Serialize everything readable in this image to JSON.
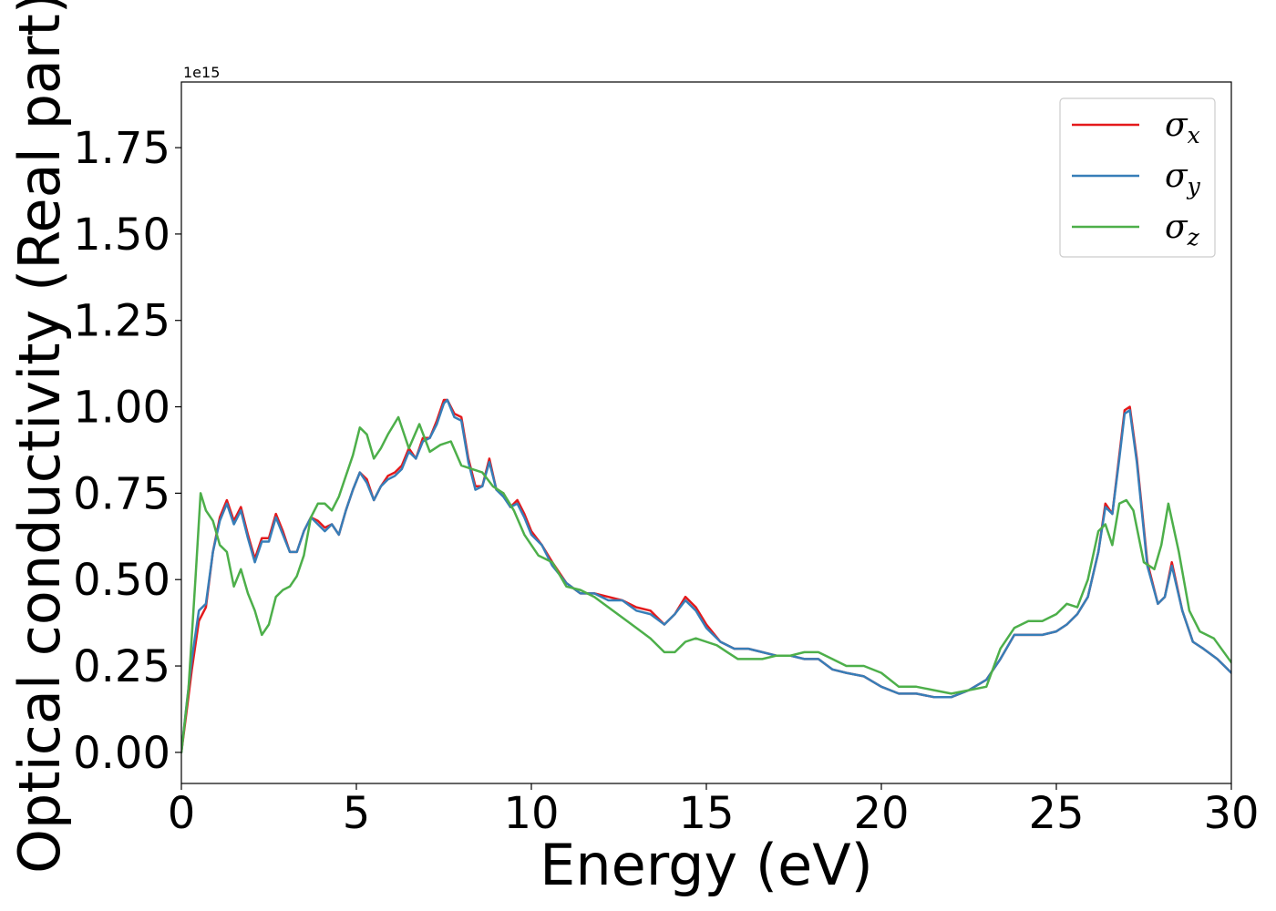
{
  "chart_data": {
    "type": "line",
    "title": "",
    "xlabel": "Energy (eV)",
    "ylabel": "Optical conductivity (Real part)",
    "y_offset_label": "1e15",
    "xlim": [
      0,
      30
    ],
    "ylim": [
      -0.09,
      1.94
    ],
    "xticks": [
      0,
      5,
      10,
      15,
      20,
      25,
      30
    ],
    "xtick_labels": [
      "0",
      "5",
      "10",
      "15",
      "20",
      "25",
      "30"
    ],
    "yticks": [
      0.0,
      0.25,
      0.5,
      0.75,
      1.0,
      1.25,
      1.5,
      1.75
    ],
    "ytick_labels": [
      "0.00",
      "0.25",
      "0.50",
      "0.75",
      "1.00",
      "1.25",
      "1.50",
      "1.75"
    ],
    "grid": false,
    "legend_position": "top-right",
    "series": [
      {
        "name": "σx",
        "legend_base": "σ",
        "legend_sub": "x",
        "color": "#e41a1c",
        "x": [
          0,
          0.15,
          0.3,
          0.5,
          0.7,
          0.9,
          1.1,
          1.3,
          1.5,
          1.7,
          1.9,
          2.1,
          2.3,
          2.5,
          2.7,
          2.9,
          3.1,
          3.3,
          3.5,
          3.7,
          3.9,
          4.1,
          4.3,
          4.5,
          4.7,
          4.9,
          5.1,
          5.3,
          5.5,
          5.7,
          5.9,
          6.1,
          6.3,
          6.5,
          6.7,
          6.9,
          7.1,
          7.3,
          7.5,
          7.6,
          7.8,
          8.0,
          8.2,
          8.4,
          8.6,
          8.8,
          9.0,
          9.2,
          9.4,
          9.6,
          9.8,
          10.0,
          10.3,
          10.6,
          11.0,
          11.4,
          11.8,
          12.2,
          12.6,
          13.0,
          13.4,
          13.8,
          14.1,
          14.4,
          14.7,
          15.0,
          15.4,
          15.8,
          16.2,
          16.6,
          17.0,
          17.4,
          17.8,
          18.2,
          18.6,
          19.0,
          19.5,
          20.0,
          20.5,
          21.0,
          21.5,
          22.0,
          22.5,
          23.0,
          23.4,
          23.8,
          24.2,
          24.6,
          25.0,
          25.3,
          25.6,
          25.9,
          26.2,
          26.4,
          26.6,
          26.8,
          26.95,
          27.1,
          27.3,
          27.6,
          27.9,
          28.1,
          28.3,
          28.6,
          28.9,
          29.2,
          29.6,
          30.0
        ],
        "y": [
          0.0,
          0.12,
          0.24,
          0.38,
          0.42,
          0.58,
          0.68,
          0.73,
          0.67,
          0.71,
          0.63,
          0.56,
          0.62,
          0.62,
          0.69,
          0.64,
          0.58,
          0.58,
          0.64,
          0.68,
          0.67,
          0.65,
          0.66,
          0.63,
          0.7,
          0.76,
          0.81,
          0.79,
          0.73,
          0.77,
          0.8,
          0.81,
          0.83,
          0.88,
          0.85,
          0.91,
          0.91,
          0.96,
          1.02,
          1.02,
          0.98,
          0.97,
          0.85,
          0.77,
          0.77,
          0.85,
          0.76,
          0.75,
          0.71,
          0.73,
          0.69,
          0.64,
          0.6,
          0.55,
          0.49,
          0.46,
          0.46,
          0.45,
          0.44,
          0.42,
          0.41,
          0.37,
          0.4,
          0.45,
          0.42,
          0.37,
          0.32,
          0.3,
          0.3,
          0.29,
          0.28,
          0.28,
          0.27,
          0.27,
          0.24,
          0.23,
          0.22,
          0.19,
          0.17,
          0.17,
          0.16,
          0.16,
          0.18,
          0.21,
          0.27,
          0.34,
          0.34,
          0.34,
          0.35,
          0.37,
          0.4,
          0.45,
          0.58,
          0.72,
          0.69,
          0.86,
          0.99,
          1.0,
          0.85,
          0.55,
          0.43,
          0.45,
          0.55,
          0.41,
          0.32,
          0.3,
          0.27,
          0.23
        ]
      },
      {
        "name": "σy",
        "legend_base": "σ",
        "legend_sub": "y",
        "color": "#377eb8",
        "x": [
          0,
          0.15,
          0.3,
          0.5,
          0.7,
          0.9,
          1.1,
          1.3,
          1.5,
          1.7,
          1.9,
          2.1,
          2.3,
          2.5,
          2.7,
          2.9,
          3.1,
          3.3,
          3.5,
          3.7,
          3.9,
          4.1,
          4.3,
          4.5,
          4.7,
          4.9,
          5.1,
          5.3,
          5.5,
          5.7,
          5.9,
          6.1,
          6.3,
          6.5,
          6.7,
          6.9,
          7.1,
          7.3,
          7.5,
          7.6,
          7.8,
          8.0,
          8.2,
          8.4,
          8.6,
          8.8,
          9.0,
          9.2,
          9.4,
          9.6,
          9.8,
          10.0,
          10.3,
          10.6,
          11.0,
          11.4,
          11.8,
          12.2,
          12.6,
          13.0,
          13.4,
          13.8,
          14.1,
          14.4,
          14.7,
          15.0,
          15.4,
          15.8,
          16.2,
          16.6,
          17.0,
          17.4,
          17.8,
          18.2,
          18.6,
          19.0,
          19.5,
          20.0,
          20.5,
          21.0,
          21.5,
          22.0,
          22.5,
          23.0,
          23.4,
          23.8,
          24.2,
          24.6,
          25.0,
          25.3,
          25.6,
          25.9,
          26.2,
          26.4,
          26.6,
          26.8,
          26.95,
          27.1,
          27.3,
          27.6,
          27.9,
          28.1,
          28.3,
          28.6,
          28.9,
          29.2,
          29.6,
          30.0
        ],
        "y": [
          0.0,
          0.14,
          0.27,
          0.41,
          0.43,
          0.58,
          0.67,
          0.72,
          0.66,
          0.7,
          0.62,
          0.55,
          0.61,
          0.61,
          0.68,
          0.63,
          0.58,
          0.58,
          0.64,
          0.68,
          0.66,
          0.64,
          0.66,
          0.63,
          0.7,
          0.76,
          0.81,
          0.78,
          0.73,
          0.77,
          0.79,
          0.8,
          0.82,
          0.87,
          0.85,
          0.9,
          0.91,
          0.95,
          1.01,
          1.02,
          0.97,
          0.96,
          0.84,
          0.76,
          0.77,
          0.84,
          0.76,
          0.74,
          0.71,
          0.72,
          0.68,
          0.63,
          0.6,
          0.54,
          0.49,
          0.46,
          0.46,
          0.44,
          0.44,
          0.41,
          0.4,
          0.37,
          0.4,
          0.44,
          0.41,
          0.36,
          0.32,
          0.3,
          0.3,
          0.29,
          0.28,
          0.28,
          0.27,
          0.27,
          0.24,
          0.23,
          0.22,
          0.19,
          0.17,
          0.17,
          0.16,
          0.16,
          0.18,
          0.21,
          0.27,
          0.34,
          0.34,
          0.34,
          0.35,
          0.37,
          0.4,
          0.45,
          0.58,
          0.71,
          0.69,
          0.85,
          0.98,
          0.99,
          0.84,
          0.54,
          0.43,
          0.45,
          0.54,
          0.41,
          0.32,
          0.3,
          0.27,
          0.23
        ]
      },
      {
        "name": "σz",
        "legend_base": "σ",
        "legend_sub": "z",
        "color": "#4daf4a",
        "x": [
          0,
          0.2,
          0.4,
          0.55,
          0.7,
          0.9,
          1.1,
          1.3,
          1.5,
          1.7,
          1.9,
          2.1,
          2.3,
          2.5,
          2.7,
          2.9,
          3.1,
          3.3,
          3.5,
          3.7,
          3.9,
          4.1,
          4.3,
          4.5,
          4.7,
          4.9,
          5.1,
          5.3,
          5.5,
          5.7,
          5.9,
          6.2,
          6.5,
          6.8,
          7.1,
          7.4,
          7.7,
          8.0,
          8.3,
          8.6,
          8.9,
          9.2,
          9.5,
          9.8,
          10.2,
          10.6,
          11.0,
          11.4,
          11.8,
          12.2,
          12.6,
          13.0,
          13.4,
          13.8,
          14.1,
          14.4,
          14.7,
          15.0,
          15.3,
          15.6,
          15.9,
          16.2,
          16.6,
          17.0,
          17.4,
          17.8,
          18.2,
          18.6,
          19.0,
          19.5,
          20.0,
          20.5,
          21.0,
          21.5,
          22.0,
          22.5,
          23.0,
          23.4,
          23.8,
          24.2,
          24.6,
          25.0,
          25.3,
          25.6,
          25.9,
          26.2,
          26.4,
          26.6,
          26.8,
          27.0,
          27.2,
          27.5,
          27.8,
          28.0,
          28.2,
          28.5,
          28.8,
          29.1,
          29.5,
          30.0
        ],
        "y": [
          0.0,
          0.18,
          0.5,
          0.75,
          0.7,
          0.67,
          0.6,
          0.58,
          0.48,
          0.53,
          0.46,
          0.41,
          0.34,
          0.37,
          0.45,
          0.47,
          0.48,
          0.51,
          0.57,
          0.68,
          0.72,
          0.72,
          0.7,
          0.74,
          0.8,
          0.86,
          0.94,
          0.92,
          0.85,
          0.88,
          0.92,
          0.97,
          0.88,
          0.95,
          0.87,
          0.89,
          0.9,
          0.83,
          0.82,
          0.81,
          0.77,
          0.75,
          0.7,
          0.63,
          0.57,
          0.55,
          0.48,
          0.47,
          0.45,
          0.42,
          0.39,
          0.36,
          0.33,
          0.29,
          0.29,
          0.32,
          0.33,
          0.32,
          0.31,
          0.29,
          0.27,
          0.27,
          0.27,
          0.28,
          0.28,
          0.29,
          0.29,
          0.27,
          0.25,
          0.25,
          0.23,
          0.19,
          0.19,
          0.18,
          0.17,
          0.18,
          0.19,
          0.3,
          0.36,
          0.38,
          0.38,
          0.4,
          0.43,
          0.42,
          0.5,
          0.64,
          0.66,
          0.6,
          0.72,
          0.73,
          0.7,
          0.55,
          0.53,
          0.6,
          0.72,
          0.58,
          0.41,
          0.35,
          0.33,
          0.26
        ]
      }
    ]
  }
}
